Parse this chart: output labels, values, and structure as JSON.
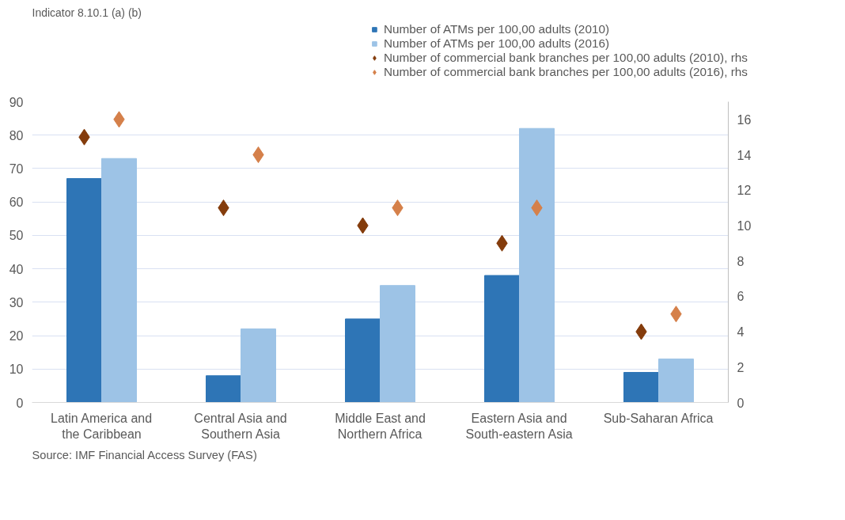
{
  "chart_data": {
    "type": "bar",
    "title": "Indicator 8.10.1 (a) (b)",
    "categories": [
      "Latin America and the Caribbean",
      "Central Asia and Southern Asia",
      "Middle East and Northern Africa",
      "Eastern Asia and South-eastern Asia",
      "Sub-Saharan Africa"
    ],
    "series": [
      {
        "name": "Number of ATMs per 100,00 adults (2010)",
        "color": "#2e75b6",
        "values": [
          67,
          8,
          25,
          38,
          9
        ]
      },
      {
        "name": "Number of ATMs per 100,00 adults (2016)",
        "color": "#9dc3e6",
        "values": [
          73,
          22,
          35,
          82,
          13
        ]
      },
      {
        "name": "Number of commercial bank branches per 100,00 adults (2010), rhs",
        "type": "scatter",
        "axis": "y2",
        "color": "#843c0c",
        "values": [
          15,
          11,
          10,
          9,
          4
        ]
      },
      {
        "name": "Number of commercial bank branches per 100,00 adults (2016), rhs",
        "type": "scatter",
        "axis": "y2",
        "color": "#d5804a",
        "values": [
          16,
          14,
          11,
          11,
          5
        ]
      }
    ],
    "ylim": [
      0,
      90
    ],
    "yticks": [
      0,
      10,
      20,
      30,
      40,
      50,
      60,
      70,
      80,
      90
    ],
    "y2lim": [
      0,
      17
    ],
    "y2ticks": [
      0,
      2,
      4,
      6,
      8,
      10,
      12,
      14,
      16
    ],
    "marker": "diamond",
    "grid": "y",
    "legend": "top right",
    "annotations": [
      "Source: IMF Financial Access Survey (FAS)"
    ]
  }
}
